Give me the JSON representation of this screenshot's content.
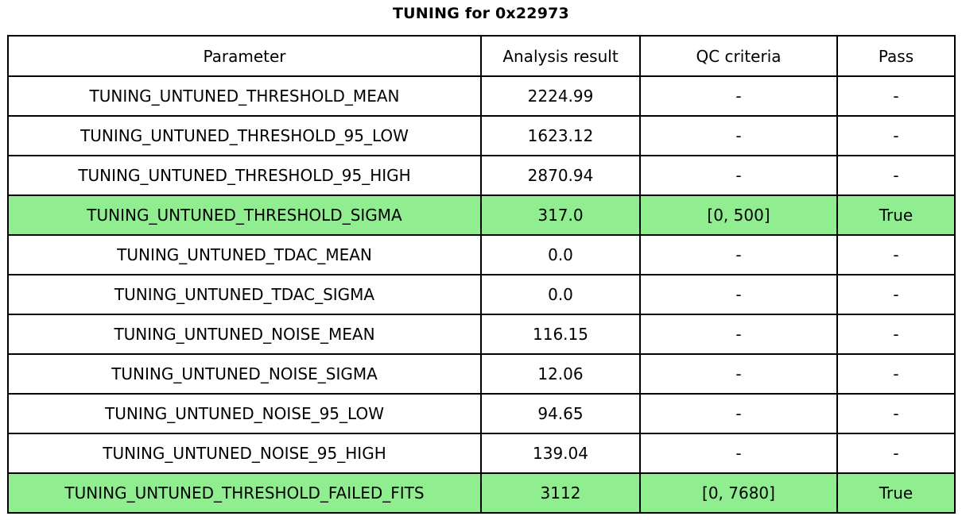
{
  "title": "TUNING for 0x22973",
  "colors": {
    "highlight_green": "#90ee90",
    "border": "#000000",
    "background": "#ffffff",
    "text": "#000000"
  },
  "table": {
    "headers": [
      "Parameter",
      "Analysis result",
      "QC criteria",
      "Pass"
    ],
    "rows": [
      {
        "parameter": "TUNING_UNTUNED_THRESHOLD_MEAN",
        "result": "2224.99",
        "qc": "-",
        "pass": "-",
        "highlight": false
      },
      {
        "parameter": "TUNING_UNTUNED_THRESHOLD_95_LOW",
        "result": "1623.12",
        "qc": "-",
        "pass": "-",
        "highlight": false
      },
      {
        "parameter": "TUNING_UNTUNED_THRESHOLD_95_HIGH",
        "result": "2870.94",
        "qc": "-",
        "pass": "-",
        "highlight": false
      },
      {
        "parameter": "TUNING_UNTUNED_THRESHOLD_SIGMA",
        "result": "317.0",
        "qc": "[0, 500]",
        "pass": "True",
        "highlight": true
      },
      {
        "parameter": "TUNING_UNTUNED_TDAC_MEAN",
        "result": "0.0",
        "qc": "-",
        "pass": "-",
        "highlight": false
      },
      {
        "parameter": "TUNING_UNTUNED_TDAC_SIGMA",
        "result": "0.0",
        "qc": "-",
        "pass": "-",
        "highlight": false
      },
      {
        "parameter": "TUNING_UNTUNED_NOISE_MEAN",
        "result": "116.15",
        "qc": "-",
        "pass": "-",
        "highlight": false
      },
      {
        "parameter": "TUNING_UNTUNED_NOISE_SIGMA",
        "result": "12.06",
        "qc": "-",
        "pass": "-",
        "highlight": false
      },
      {
        "parameter": "TUNING_UNTUNED_NOISE_95_LOW",
        "result": "94.65",
        "qc": "-",
        "pass": "-",
        "highlight": false
      },
      {
        "parameter": "TUNING_UNTUNED_NOISE_95_HIGH",
        "result": "139.04",
        "qc": "-",
        "pass": "-",
        "highlight": false
      },
      {
        "parameter": "TUNING_UNTUNED_THRESHOLD_FAILED_FITS",
        "result": "3112",
        "qc": "[0, 7680]",
        "pass": "True",
        "highlight": true
      }
    ]
  },
  "chart_data": {
    "type": "table",
    "title": "TUNING for 0x22973",
    "columns": [
      "Parameter",
      "Analysis result",
      "QC criteria",
      "Pass"
    ],
    "rows": [
      [
        "TUNING_UNTUNED_THRESHOLD_MEAN",
        "2224.99",
        "-",
        "-"
      ],
      [
        "TUNING_UNTUNED_THRESHOLD_95_LOW",
        "1623.12",
        "-",
        "-"
      ],
      [
        "TUNING_UNTUNED_THRESHOLD_95_HIGH",
        "2870.94",
        "-",
        "-"
      ],
      [
        "TUNING_UNTUNED_THRESHOLD_SIGMA",
        "317.0",
        "[0, 500]",
        "True"
      ],
      [
        "TUNING_UNTUNED_TDAC_MEAN",
        "0.0",
        "-",
        "-"
      ],
      [
        "TUNING_UNTUNED_TDAC_SIGMA",
        "0.0",
        "-",
        "-"
      ],
      [
        "TUNING_UNTUNED_NOISE_MEAN",
        "116.15",
        "-",
        "-"
      ],
      [
        "TUNING_UNTUNED_NOISE_SIGMA",
        "12.06",
        "-",
        "-"
      ],
      [
        "TUNING_UNTUNED_NOISE_95_LOW",
        "94.65",
        "-",
        "-"
      ],
      [
        "TUNING_UNTUNED_NOISE_95_HIGH",
        "139.04",
        "-",
        "-"
      ],
      [
        "TUNING_UNTUNED_THRESHOLD_FAILED_FITS",
        "3112",
        "[0, 7680]",
        "True"
      ]
    ],
    "highlighted_row_indices": [
      3,
      10
    ],
    "layout": {
      "grid": true,
      "header_row": true,
      "cell_alignment": "center"
    }
  }
}
